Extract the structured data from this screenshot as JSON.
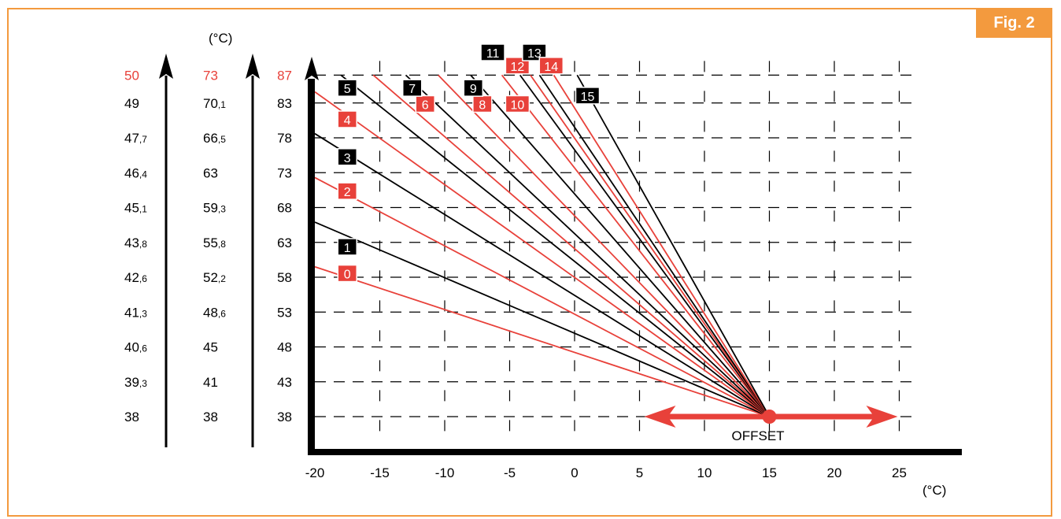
{
  "figure_label": "Fig. 2",
  "colors": {
    "accent": "#f39a3e",
    "red": "#e8413a",
    "black": "#000000"
  },
  "chart_data": {
    "type": "line",
    "title": "",
    "xlabel": "(°C)",
    "ylabel": "(°C)",
    "x_ticks": [
      "-20",
      "-15",
      "-10",
      "-5",
      "0",
      "5",
      "10",
      "15",
      "20",
      "25"
    ],
    "xlim": [
      -20,
      29
    ],
    "y_ticks": [
      "38",
      "43",
      "48",
      "53",
      "58",
      "63",
      "68",
      "73",
      "78",
      "83",
      "87"
    ],
    "ylim": [
      38,
      87
    ],
    "grid": true,
    "scale_columns": [
      {
        "header": "50",
        "color": "#e8413a",
        "values": [
          "49",
          "47,7",
          "46,4",
          "45,1",
          "43,8",
          "42,6",
          "41,3",
          "40,6",
          "39,3",
          "38"
        ]
      },
      {
        "header": "73",
        "color": "#e8413a",
        "values": [
          "70,1",
          "66,5",
          "63",
          "59,3",
          "55,8",
          "52,2",
          "48,6",
          "45",
          "41",
          "38"
        ]
      }
    ],
    "offset_label": "OFFSET",
    "offset_point": {
      "x": 15,
      "y": 38
    },
    "offset_range": [
      5,
      25
    ],
    "series": [
      {
        "name": "0",
        "color": "red",
        "x": [
          -20,
          15
        ],
        "y": [
          59.5,
          38
        ]
      },
      {
        "name": "1",
        "color": "black",
        "x": [
          -20,
          15
        ],
        "y": [
          65.9,
          38
        ]
      },
      {
        "name": "2",
        "color": "red",
        "x": [
          -20,
          15
        ],
        "y": [
          72.3,
          38
        ]
      },
      {
        "name": "3",
        "color": "black",
        "x": [
          -20,
          15
        ],
        "y": [
          78.6,
          38
        ]
      },
      {
        "name": "4",
        "color": "red",
        "x": [
          -20,
          15
        ],
        "y": [
          84.6,
          38
        ]
      },
      {
        "name": "5",
        "color": "black",
        "x": [
          -18,
          15
        ],
        "y": [
          87,
          38
        ]
      },
      {
        "name": "6",
        "color": "red",
        "x": [
          -15.5,
          15
        ],
        "y": [
          87,
          38
        ]
      },
      {
        "name": "7",
        "color": "black",
        "x": [
          -13,
          15
        ],
        "y": [
          87,
          38
        ]
      },
      {
        "name": "8",
        "color": "red",
        "x": [
          -10.5,
          15
        ],
        "y": [
          87,
          38
        ]
      },
      {
        "name": "9",
        "color": "black",
        "x": [
          -8,
          15
        ],
        "y": [
          87,
          38
        ]
      },
      {
        "name": "10",
        "color": "red",
        "x": [
          -5.6,
          15
        ],
        "y": [
          87,
          38
        ]
      },
      {
        "name": "11",
        "color": "black",
        "x": [
          -4.2,
          15
        ],
        "y": [
          87,
          38
        ]
      },
      {
        "name": "12",
        "color": "red",
        "x": [
          -3.4,
          15
        ],
        "y": [
          87,
          38
        ]
      },
      {
        "name": "13",
        "color": "black",
        "x": [
          -2.7,
          15
        ],
        "y": [
          87,
          38
        ]
      },
      {
        "name": "14",
        "color": "red",
        "x": [
          -1.6,
          15
        ],
        "y": [
          87,
          38
        ]
      },
      {
        "name": "15",
        "color": "black",
        "x": [
          0.2,
          15
        ],
        "y": [
          87,
          38
        ]
      }
    ],
    "curve_labels": [
      {
        "text": "0",
        "color": "red",
        "x": -17.5,
        "y": 58.5
      },
      {
        "text": "1",
        "color": "black",
        "x": -17.5,
        "y": 62.3
      },
      {
        "text": "2",
        "color": "red",
        "x": -17.5,
        "y": 70.3
      },
      {
        "text": "3",
        "color": "black",
        "x": -17.5,
        "y": 75.2
      },
      {
        "text": "4",
        "color": "red",
        "x": -17.5,
        "y": 80.6
      },
      {
        "text": "5",
        "color": "black",
        "x": -17.5,
        "y": 85.1
      },
      {
        "text": "6",
        "color": "red",
        "x": -11.5,
        "y": 82.8
      },
      {
        "text": "7",
        "color": "black",
        "x": -12.5,
        "y": 85.1
      },
      {
        "text": "8",
        "color": "red",
        "x": -7.1,
        "y": 82.8
      },
      {
        "text": "9",
        "color": "black",
        "x": -7.8,
        "y": 85.1
      },
      {
        "text": "10",
        "color": "red",
        "x": -4.4,
        "y": 82.8
      },
      {
        "text": "11",
        "color": "black",
        "x": -6.3,
        "y": 90.2
      },
      {
        "text": "12",
        "color": "red",
        "x": -4.4,
        "y": 88.3
      },
      {
        "text": "13",
        "color": "black",
        "x": -3.1,
        "y": 90.2
      },
      {
        "text": "14",
        "color": "red",
        "x": -1.8,
        "y": 88.3
      },
      {
        "text": "15",
        "color": "black",
        "x": 1.0,
        "y": 84.0
      }
    ]
  }
}
